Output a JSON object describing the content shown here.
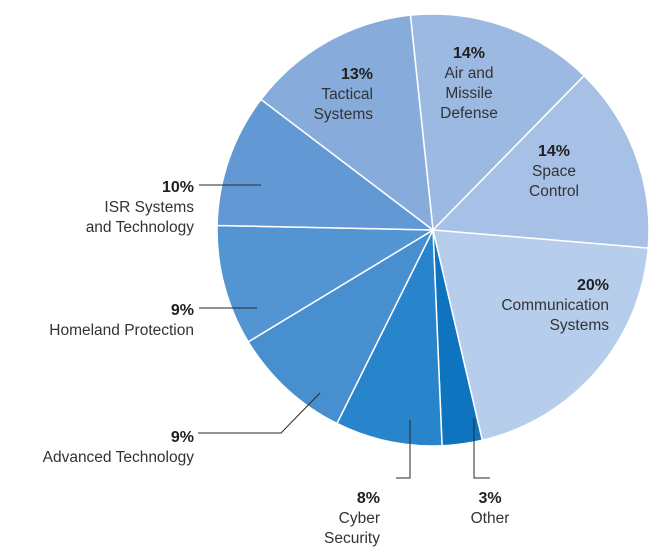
{
  "chart_data": {
    "type": "pie",
    "title": "",
    "start_angle_deg": -6,
    "direction": "clockwise",
    "slices": [
      {
        "key": "air",
        "pct_label": "14%",
        "label": [
          "Air and",
          "Missile",
          "Defense"
        ],
        "value": 14,
        "color": "#9cb9e2"
      },
      {
        "key": "space",
        "pct_label": "14%",
        "label": [
          "Space",
          "Control"
        ],
        "value": 14,
        "color": "#a7c1e6"
      },
      {
        "key": "comm",
        "pct_label": "20%",
        "label": [
          "Communication",
          "Systems"
        ],
        "value": 20,
        "color": "#b7cdec"
      },
      {
        "key": "other",
        "pct_label": "3%",
        "label": [
          "Other"
        ],
        "value": 3,
        "color": "#0f74c0"
      },
      {
        "key": "cyber",
        "pct_label": "8%",
        "label": [
          "Cyber",
          "Security"
        ],
        "value": 8,
        "color": "#2884cb"
      },
      {
        "key": "advanced",
        "pct_label": "9%",
        "label": [
          "Advanced Technology"
        ],
        "value": 9,
        "color": "#478fcf"
      },
      {
        "key": "homeland",
        "pct_label": "9%",
        "label": [
          "Homeland Protection"
        ],
        "value": 9,
        "color": "#5394d2"
      },
      {
        "key": "isr",
        "pct_label": "10%",
        "label": [
          "ISR Systems",
          "and Technology"
        ],
        "value": 10,
        "color": "#6299d4"
      },
      {
        "key": "tactical",
        "pct_label": "13%",
        "label": [
          "Tactical",
          "Systems"
        ],
        "value": 13,
        "color": "#87acdc"
      }
    ]
  }
}
